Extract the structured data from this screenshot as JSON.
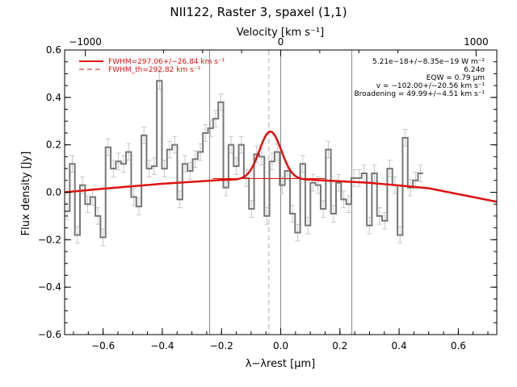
{
  "chart_data": {
    "type": "line",
    "title": "NII122, Raster 3, spaxel (1,1)",
    "xlabel": "λ−λrest [μm]",
    "ylabel": "Flux density [Jy]",
    "top_xlabel": "Velocity [km s⁻¹]",
    "xlim": [
      -0.73,
      0.73
    ],
    "ylim": [
      -0.6,
      0.6
    ],
    "x_ticks": [
      -0.6,
      -0.4,
      -0.2,
      0.0,
      0.2,
      0.4,
      0.6
    ],
    "x_tick_labels": [
      "−0.6",
      "−0.4",
      "−0.2",
      "0.0",
      "0.2",
      "0.4",
      "0.6"
    ],
    "y_ticks": [
      -0.6,
      -0.4,
      -0.2,
      0.0,
      0.2,
      0.4,
      0.6
    ],
    "y_tick_labels": [
      "−0.6",
      "−0.4",
      "−0.2",
      "0.0",
      "0.2",
      "0.4",
      "0.6"
    ],
    "top_ticks": [
      -0.66,
      0.0,
      0.66
    ],
    "top_tick_labels": [
      "−1000",
      "0",
      "1000"
    ],
    "vertical_lines": [
      -0.24,
      0.0,
      0.24
    ],
    "dashed_line_x": -0.04,
    "grid": false,
    "legend_position": "top-left",
    "legend": [
      {
        "label": "FWHM=297.06+/−26.84 km s⁻¹",
        "style": "solid",
        "color": "#dd1111"
      },
      {
        "label": "FWHM_th=292.82 km s⁻¹",
        "style": "dashed",
        "color": "#dd1111"
      }
    ],
    "annotations": [
      "5.21e−18+/−8.35e−19 W m⁻²",
      "6.24σ",
      "EQW = 0.79 μm",
      "v = −102.00+/−20.56 km s⁻¹",
      "Broadening = 49.99+/−4.51 km s⁻¹"
    ],
    "spectrum": {
      "name": "data",
      "color": "#777777",
      "bin_width": 0.0173,
      "x_start": -0.73,
      "values": [
        -0.08,
        0.12,
        -0.18,
        0.03,
        -0.05,
        -0.02,
        -0.1,
        -0.19,
        0.19,
        0.1,
        0.13,
        0.12,
        0.17,
        -0.02,
        -0.06,
        0.24,
        0.1,
        0.11,
        0.47,
        0.1,
        0.18,
        0.2,
        -0.03,
        0.12,
        0.09,
        0.14,
        0.17,
        0.25,
        0.27,
        0.31,
        0.38,
        0.02,
        0.2,
        0.11,
        0.2,
        0.06,
        -0.07,
        0.16,
        0.15,
        -0.1,
        0.13,
        0.17,
        0.03,
        0.09,
        -0.09,
        -0.17,
        0.12,
        -0.14,
        0.04,
        0.03,
        -0.07,
        0.18,
        -0.09,
        0.04,
        -0.03,
        -0.05,
        0.06,
        0.06,
        0.08,
        -0.14,
        0.08,
        -0.1,
        -0.12,
        0.1,
        0.03,
        -0.18,
        0.23,
        0.02,
        0.05,
        0.08
      ],
      "error": 0.035
    },
    "fit_line": {
      "name": "fit",
      "color": "#dd1111",
      "baseline": [
        {
          "x": -0.73,
          "y": 0.0
        },
        {
          "x": -0.6,
          "y": 0.015
        },
        {
          "x": -0.4,
          "y": 0.036
        },
        {
          "x": -0.2,
          "y": 0.052
        },
        {
          "x": -0.04,
          "y": 0.056
        },
        {
          "x": 0.1,
          "y": 0.053
        },
        {
          "x": 0.3,
          "y": 0.04
        },
        {
          "x": 0.5,
          "y": 0.017
        },
        {
          "x": 0.73,
          "y": -0.04
        }
      ],
      "gaussian_center": -0.035,
      "gaussian_amplitude": 0.2,
      "gaussian_sigma": 0.037
    },
    "baseline_segment": {
      "x_start": -0.23,
      "x_end": 0.15,
      "y": 0.058
    }
  }
}
